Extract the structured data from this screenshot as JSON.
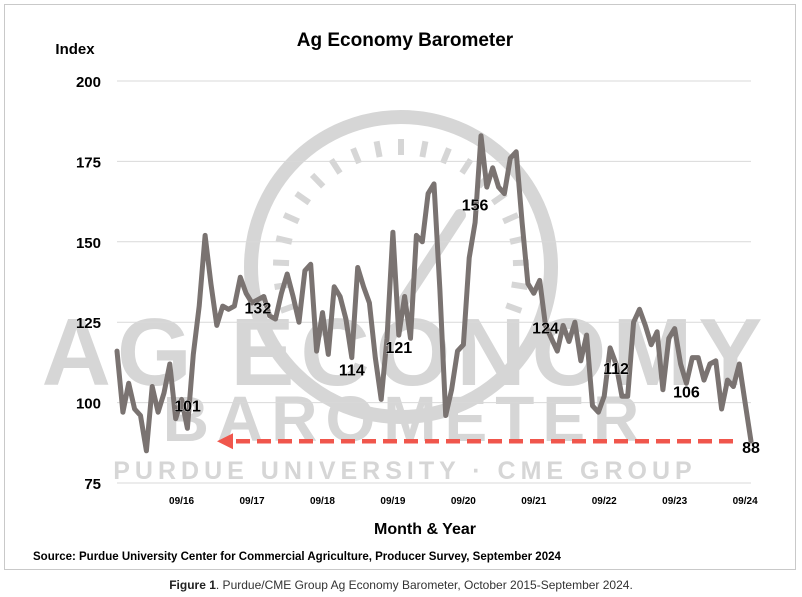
{
  "chart_data": {
    "type": "line",
    "title": "Ag Economy Barometer",
    "ylabel": "Index",
    "xlabel": "Month & Year",
    "ylim": [
      75,
      200
    ],
    "yticks": [
      "75",
      "100",
      "125",
      "150",
      "175",
      "200"
    ],
    "xticks": [
      "09/16",
      "09/17",
      "09/18",
      "09/19",
      "09/20",
      "09/21",
      "09/22",
      "09/23",
      "09/24"
    ],
    "grid": "horizontal",
    "series": [
      {
        "values": [
          116,
          97,
          106,
          98,
          96,
          85,
          105,
          97,
          103,
          112,
          95,
          101,
          92,
          115,
          130,
          152,
          137,
          124,
          130,
          129,
          130,
          139,
          134,
          131,
          132,
          133,
          127,
          126,
          134,
          140,
          133,
          125,
          141,
          143,
          116,
          128,
          115,
          136,
          133,
          126,
          114,
          142,
          136,
          131,
          114,
          101,
          120,
          153,
          121,
          133,
          120,
          152,
          150,
          165,
          168,
          135,
          96,
          104,
          116,
          118,
          145,
          156,
          183,
          167,
          173,
          167,
          165,
          176,
          178,
          156,
          137,
          134,
          138,
          124,
          120,
          116,
          124,
          119,
          125,
          113,
          121,
          99,
          97,
          102,
          117,
          112,
          102,
          102,
          125,
          129,
          124,
          118,
          122,
          104,
          120,
          123,
          112,
          106,
          114,
          114,
          107,
          112,
          113,
          98,
          107,
          105,
          112,
          100,
          88
        ]
      }
    ],
    "annotations": [
      {
        "label": "101",
        "index": 11,
        "value": 101
      },
      {
        "label": "132",
        "index": 24,
        "value": 132
      },
      {
        "label": "114",
        "index": 40,
        "value": 114
      },
      {
        "label": "121",
        "index": 48,
        "value": 121
      },
      {
        "label": "156",
        "index": 61,
        "value": 156
      },
      {
        "label": "124",
        "index": 73,
        "value": 124
      },
      {
        "label": "112",
        "index": 85,
        "value": 112
      },
      {
        "label": "106",
        "index": 97,
        "value": 106
      },
      {
        "label": "88",
        "index": 108,
        "value": 88
      }
    ],
    "arrow_value": 88,
    "watermark": [
      "AG ECONOMY",
      "BAROMETER",
      "PURDUE UNIVERSITY · CME GROUP"
    ],
    "colors": {
      "line": "#7a7371",
      "arrow": "#f0564c",
      "grid": "#d9d9d9",
      "watermark": "#d6d6d6"
    }
  },
  "source": "Source: Purdue University Center for Commercial Agriculture, Producer Survey, September 2024",
  "caption": {
    "label": "Figure 1",
    "text": ". Purdue/CME Group Ag Economy Barometer, October 2015-September 2024."
  }
}
